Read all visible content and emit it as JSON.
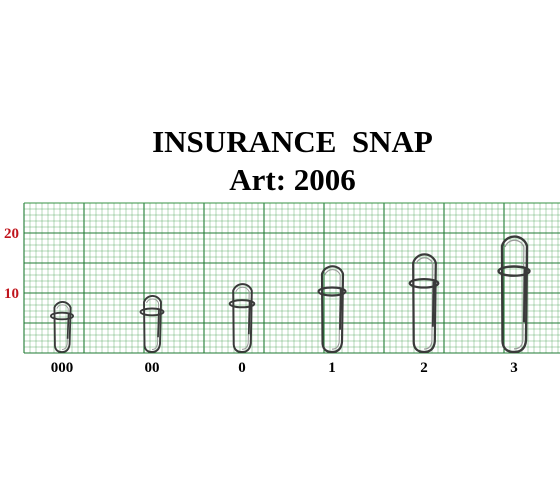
{
  "title": "INSURANCE  SNAP",
  "subtitle": "Art: 2006",
  "colors": {
    "grid": "#3c9a4a",
    "grid_major": "#1f7a33",
    "scale_label": "#c0151d",
    "snap_wire": "#3a3a3a"
  },
  "scale": {
    "labels": [
      "20",
      "10"
    ],
    "values": [
      20,
      10
    ],
    "unit_min": 0,
    "unit_max": 25
  },
  "snaps": [
    {
      "size": "000",
      "length": 9
    },
    {
      "size": "00",
      "length": 10
    },
    {
      "size": "0",
      "length": 12
    },
    {
      "size": "1",
      "length": 15
    },
    {
      "size": "2",
      "length": 17
    },
    {
      "size": "3",
      "length": 20
    }
  ]
}
